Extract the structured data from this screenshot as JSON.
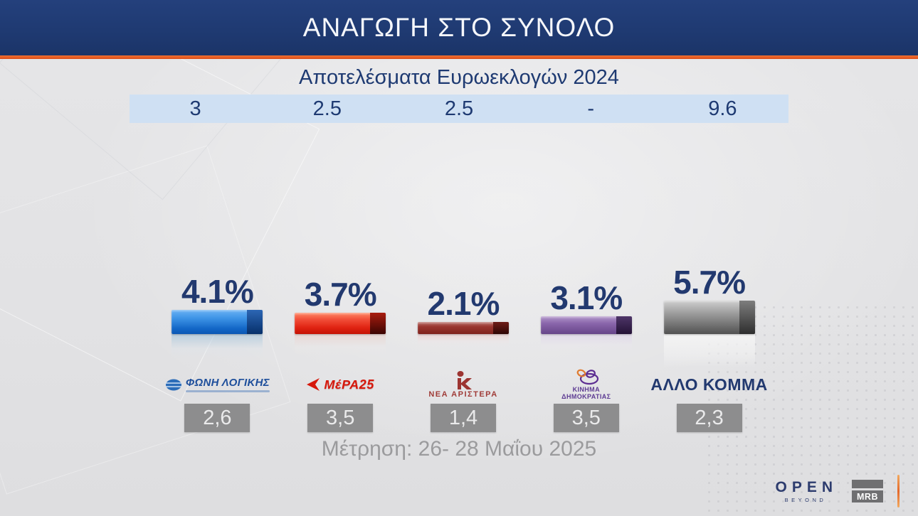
{
  "header": {
    "title": "ΑΝΑΓΩΓΗ ΣΤΟ ΣΥΝΟΛΟ",
    "bar_color": "#1f3a72",
    "accent_color": "#dd4e1a"
  },
  "euro_row": {
    "label": "Αποτελέσματα Ευρωεκλογών 2024",
    "band_color": "#cfe0f3"
  },
  "footer": {
    "measurement_label": "Μέτρηση: 26- 28 Μαΐου 2025"
  },
  "branding": {
    "channel": "OPEN",
    "channel_sub": "BEYOND",
    "agency": "MRB"
  },
  "chart_data": {
    "type": "bar",
    "title": "ΑΝΑΓΩΓΗ ΣΤΟ ΣΥΝΟΛΟ",
    "subtitle": "Αποτελέσματα Ευρωεκλογών 2024",
    "note": "Μέτρηση: 26- 28 Μαΐου 2025",
    "legend_position": "none",
    "grid": false,
    "categories": [
      "ΦΩΝΗ ΛΟΓΙΚΗΣ",
      "ΜέΡΑ25",
      "ΝΕΑ ΑΡΙΣΤΕΡΑ",
      "ΚΙΝΗΜΑ ΔΗΜΟΚΡΑΤΙΑΣ",
      "ΑΛΛΟ ΚΟΜΜΑ"
    ],
    "values": [
      4.1,
      3.7,
      2.1,
      3.1,
      5.7
    ],
    "euro_2024_values": [
      "3",
      "2.5",
      "2.5",
      "-",
      "9.6"
    ],
    "lower_box_values": [
      "2,6",
      "3,5",
      "1,4",
      "3,5",
      "2,3"
    ],
    "parties": [
      {
        "name": "ΦΩΝΗ ΛΟΓΙΚΗΣ",
        "pct_label": "4.1%",
        "value": 4.1,
        "euro_2024": "3",
        "lower_value": "2,6",
        "color": "#1a6cd0"
      },
      {
        "name": "ΜέΡΑ25",
        "pct_label": "3.7%",
        "value": 3.7,
        "euro_2024": "2.5",
        "lower_value": "3,5",
        "color": "#e02312"
      },
      {
        "name": "ΝΕΑ ΑΡΙΣΤΕΡΑ",
        "pct_label": "2.1%",
        "value": 2.1,
        "euro_2024": "2.5",
        "lower_value": "1,4",
        "color": "#8e2d2a"
      },
      {
        "name": "ΚΙΝΗΜΑ ΔΗΜΟΚΡΑΤΙΑΣ",
        "pct_label": "3.1%",
        "value": 3.1,
        "euro_2024": "-",
        "lower_value": "3,5",
        "color": "#7b5a9f"
      },
      {
        "name": "ΑΛΛΟ ΚΟΜΜΑ",
        "pct_label": "5.7%",
        "value": 5.7,
        "euro_2024": "9.6",
        "lower_value": "2,3",
        "color": "#8f8f8f"
      }
    ]
  }
}
